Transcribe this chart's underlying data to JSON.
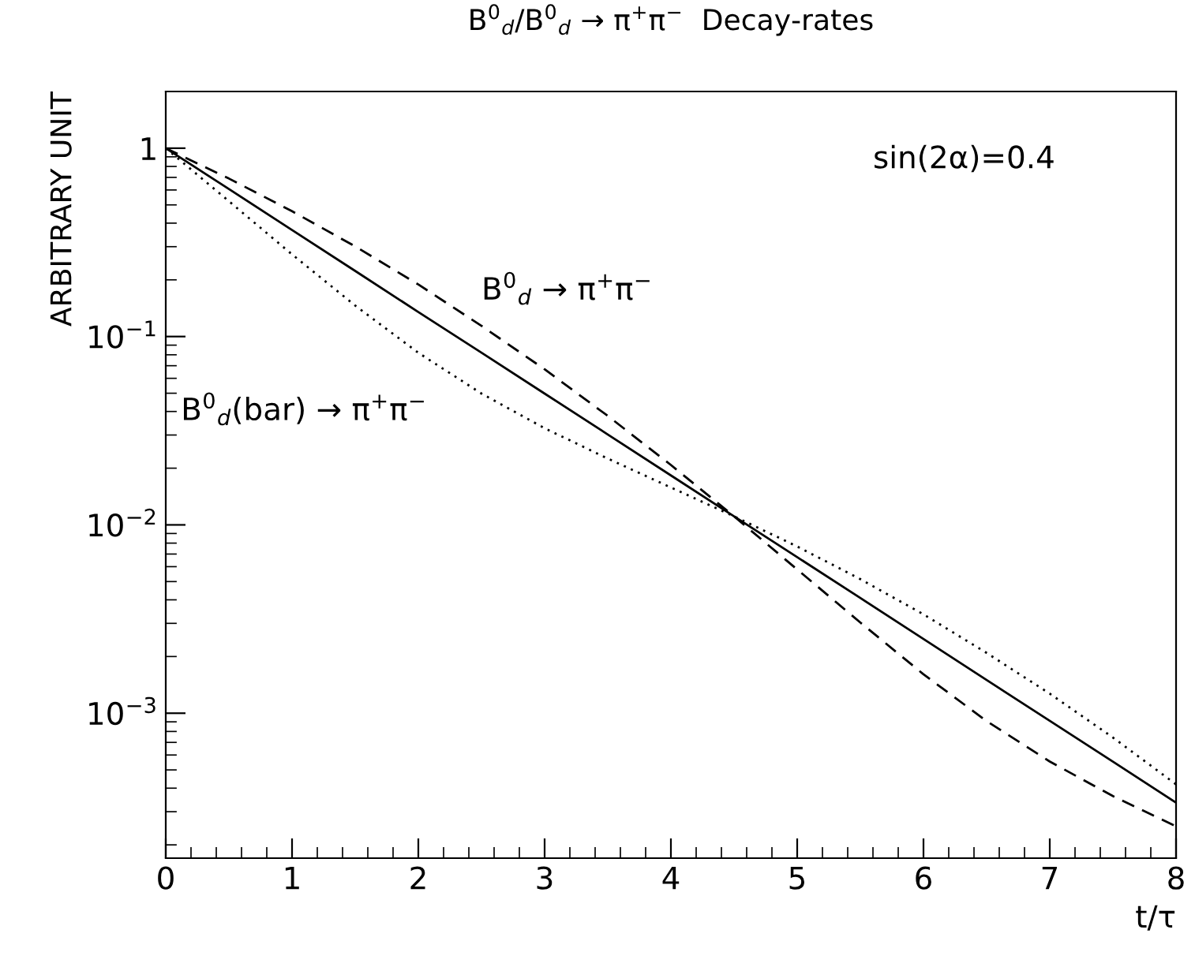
{
  "chart_data": {
    "type": "line",
    "title": "B$^{0}$$_{d}$/B$^{0}$$_{d}$ → π$^{+}$π$^{−}$  Decay-rates",
    "xlabel": "t/τ",
    "ylabel": "ARBITRARY UNIT",
    "annotations": [
      "sin(2α)=0.4"
    ],
    "log": "y",
    "grid": false,
    "legend": false,
    "marker": "none",
    "xlim": [
      0,
      8
    ],
    "xticks": [
      0,
      1,
      2,
      3,
      4,
      5,
      6,
      7,
      8
    ],
    "ylim": [
      0.00017,
      2
    ],
    "yticks": [
      {
        "value": 1,
        "label": "1"
      },
      {
        "value": 0.1,
        "label": "10$^{−1}$"
      },
      {
        "value": 0.01,
        "label": "10$^{−2}$"
      },
      {
        "value": 0.001,
        "label": "10$^{−3}$"
      }
    ],
    "x": [
      0,
      0.5,
      1,
      1.5,
      2,
      2.5,
      3,
      3.5,
      4,
      4.5,
      5,
      5.5,
      6,
      6.5,
      7,
      7.5,
      8
    ],
    "series": [
      {
        "color": "#000000",
        "line_style": "solid",
        "values": [
          1,
          0.607,
          0.368,
          0.223,
          0.135,
          0.0821,
          0.0498,
          0.0302,
          0.0183,
          0.0111,
          0.00674,
          0.00409,
          0.00248,
          0.0015,
          0.000912,
          0.000553,
          0.000335
        ]
      },
      {
        "name": "B$^{0}$$_{d}$ → π$^{+}$π$^{−}$",
        "color": "#000000",
        "line_style": "dashed",
        "values": [
          1,
          0.69,
          0.463,
          0.301,
          0.189,
          0.114,
          0.067,
          0.0379,
          0.0208,
          0.0111,
          0.0058,
          0.00303,
          0.00161,
          0.000908,
          0.000554,
          0.000363,
          0.000251
        ]
      },
      {
        "name": "B$^{0}$$_{d}$(bar) → π$^{+}$π$^{−}$",
        "color": "#000000",
        "line_style": "dotted",
        "values": [
          1,
          0.523,
          0.273,
          0.146,
          0.082,
          0.0498,
          0.0326,
          0.0225,
          0.0158,
          0.0111,
          0.00768,
          0.00515,
          0.00335,
          0.00209,
          0.00127,
          0.000743,
          0.000419
        ]
      }
    ]
  }
}
